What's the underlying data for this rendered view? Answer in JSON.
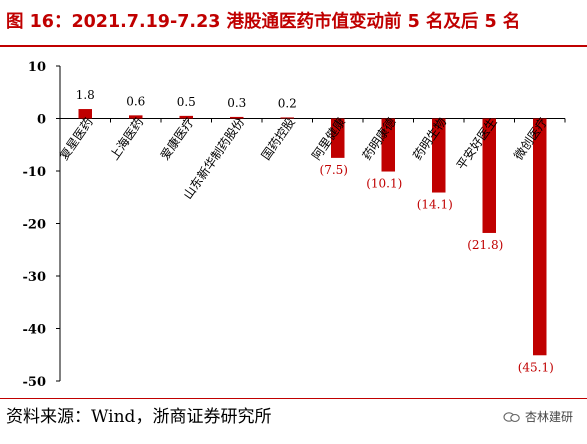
{
  "figure": {
    "title": "图 16：2021.7.19-7.23 港股通医药市值变动前 5 名及后 5 名",
    "source": "资料来源：Wind，浙商证券研究所",
    "watermark": "杏林建研",
    "colors": {
      "title": "#c00000",
      "bar": "#c00000",
      "negative_label": "#c00000",
      "positive_label": "#000000"
    }
  },
  "chart_data": {
    "type": "bar",
    "title": "",
    "xlabel": "",
    "ylabel": "",
    "categories": [
      "复星医药",
      "上海医药",
      "爱康医疗",
      "山东新华制药股份",
      "国药控股",
      "阿里健康",
      "药明康德",
      "药明生物",
      "平安好医生",
      "微创医疗"
    ],
    "values": [
      1.8,
      0.6,
      0.5,
      0.3,
      0.2,
      -7.5,
      -10.1,
      -14.1,
      -21.8,
      -45.1
    ],
    "data_labels": [
      "1.8",
      "0.6",
      "0.5",
      "0.3",
      "0.2",
      "(7.5)",
      "(10.1)",
      "(14.1)",
      "(21.8)",
      "(45.1)"
    ],
    "ylim": [
      -50,
      10
    ],
    "yticks": [
      10,
      0,
      -10,
      -20,
      -30,
      -40,
      -50
    ],
    "grid": false,
    "legend": "none"
  }
}
